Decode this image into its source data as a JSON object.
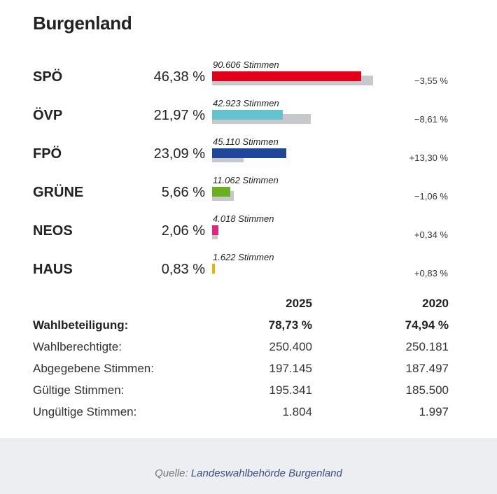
{
  "title": "Burgenland",
  "chart_data": {
    "type": "bar",
    "title": "Burgenland",
    "orientation": "horizontal",
    "unit": "%",
    "series": [
      {
        "name": "2025",
        "values": [
          46.38,
          21.97,
          23.09,
          5.66,
          2.06,
          0.83
        ]
      },
      {
        "name": "2020",
        "values": [
          49.93,
          30.58,
          9.79,
          6.72,
          1.72,
          0.0
        ]
      }
    ],
    "parties": [
      {
        "name": "SPÖ",
        "pct": "46,38 %",
        "value": 46.38,
        "prev_value": 49.93,
        "votes": "90.606 Stimmen",
        "change": "−3,55 %",
        "color": "#e2001a"
      },
      {
        "name": "ÖVP",
        "pct": "21,97 %",
        "value": 21.97,
        "prev_value": 30.58,
        "votes": "42.923 Stimmen",
        "change": "−8,61 %",
        "color": "#63c3d1"
      },
      {
        "name": "FPÖ",
        "pct": "23,09 %",
        "value": 23.09,
        "prev_value": 9.79,
        "votes": "45.110 Stimmen",
        "change": "+13,30 %",
        "color": "#1f4699"
      },
      {
        "name": "GRÜNE",
        "pct": "5,66 %",
        "value": 5.66,
        "prev_value": 6.72,
        "votes": "11.062 Stimmen",
        "change": "−1,06 %",
        "color": "#6aaf1e"
      },
      {
        "name": "NEOS",
        "pct": "2,06 %",
        "value": 2.06,
        "prev_value": 1.72,
        "votes": "4.018 Stimmen",
        "change": "+0,34 %",
        "color": "#e3247a"
      },
      {
        "name": "HAUS",
        "pct": "0,83 %",
        "value": 0.83,
        "prev_value": 0.0,
        "votes": "1.622 Stimmen",
        "change": "+0,83 %",
        "color": "#e8b500"
      }
    ],
    "prev_color": "#c7c8cc",
    "xlim": [
      0,
      100
    ]
  },
  "stats": {
    "header": {
      "label": "",
      "v1": "2025",
      "v2": "2020"
    },
    "rows": [
      {
        "label": "Wahlbeteiligung:",
        "v1": "78,73 %",
        "v2": "74,94 %",
        "bold": true
      },
      {
        "label": "Wahlberechtigte:",
        "v1": "250.400",
        "v2": "250.181",
        "bold": false
      },
      {
        "label": "Abgegebene Stimmen:",
        "v1": "197.145",
        "v2": "187.497",
        "bold": false
      },
      {
        "label": "Gültige Stimmen:",
        "v1": "195.341",
        "v2": "185.500",
        "bold": false
      },
      {
        "label": "Ungültige Stimmen:",
        "v1": "1.804",
        "v2": "1.997",
        "bold": false
      }
    ]
  },
  "footer": {
    "source_prefix": "Quelle: ",
    "source_name": "Landeswahlbehörde Burgenland"
  }
}
